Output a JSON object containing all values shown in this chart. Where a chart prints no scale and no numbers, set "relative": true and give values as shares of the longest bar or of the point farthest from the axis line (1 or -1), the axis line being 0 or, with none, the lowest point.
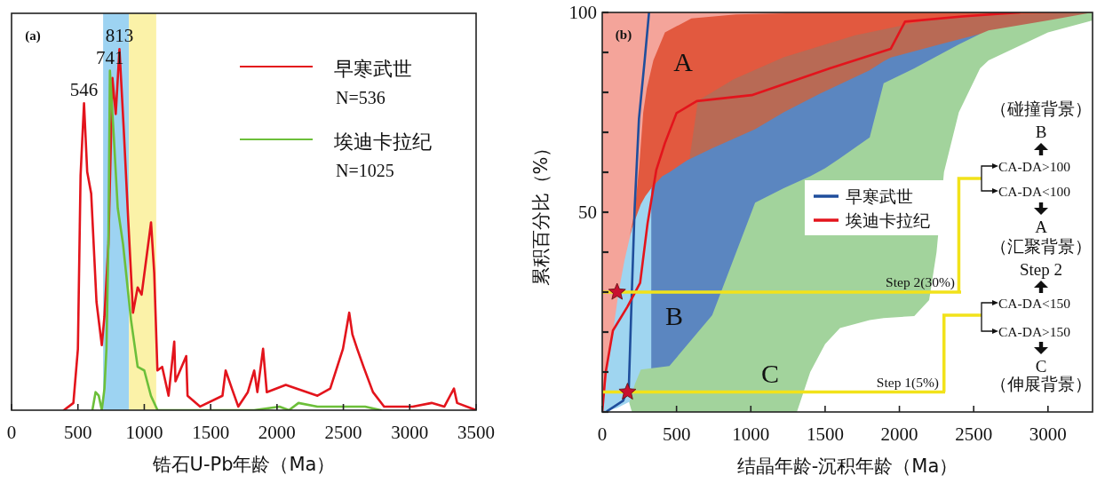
{
  "chart_data": [
    {
      "type": "line",
      "relative": true,
      "xlabel": "锆石U-Pb年龄（Ma）",
      "xlim": [
        0,
        3500
      ],
      "xticks": [
        0,
        500,
        1000,
        1500,
        2000,
        2500,
        3000,
        3500
      ],
      "legend": "top right",
      "tick_labels": "x",
      "bands": [
        {
          "axis": "x",
          "from": 690,
          "to": 885,
          "color": "#9dd3f2"
        },
        {
          "axis": "x",
          "from": 885,
          "to": 1090,
          "color": "#fbf2a8"
        }
      ],
      "series": [
        {
          "name": "早寒武世",
          "color": "#e3141c",
          "x": [
            394,
            466,
            500,
            520,
            546,
            570,
            600,
            640,
            680,
            700,
            730,
            760,
            785,
            813,
            845,
            880,
            915,
            950,
            980,
            1051,
            1075,
            1099,
            1135,
            1183,
            1226,
            1235,
            1316,
            1326,
            1421,
            1589,
            1613,
            1660,
            1708,
            1780,
            1828,
            1852,
            1895,
            1923,
            2066,
            2305,
            2401,
            2497,
            2544,
            2568,
            2604,
            2652,
            2723,
            2807,
            3022,
            3165,
            3261,
            3333,
            3357,
            3500
          ],
          "values": [
            0,
            0.02,
            0.17,
            0.65,
            0.85,
            0.66,
            0.6,
            0.3,
            0.18,
            0.26,
            0.46,
            0.92,
            0.82,
            1.0,
            0.78,
            0.52,
            0.27,
            0.34,
            0.32,
            0.52,
            0.38,
            0.11,
            0.12,
            0.04,
            0.19,
            0.08,
            0.15,
            0.04,
            0.01,
            0.04,
            0.11,
            0.06,
            0.01,
            0.05,
            0.11,
            0.05,
            0.17,
            0.05,
            0.07,
            0.04,
            0.06,
            0.17,
            0.27,
            0.21,
            0.17,
            0.12,
            0.05,
            0.01,
            0.01,
            0.02,
            0.01,
            0.06,
            0.02,
            0
          ]
        },
        {
          "name": "埃迪卡拉纪",
          "color": "#6cbf3a",
          "x": [
            609,
            633,
            657,
            680,
            700,
            715,
            730,
            741,
            770,
            800,
            840,
            900,
            950,
            1000,
            1050,
            1100,
            1828,
            2019,
            2090,
            2162,
            2305,
            2664,
            2783
          ],
          "values": [
            0,
            0.05,
            0.04,
            0,
            0.06,
            0.17,
            0.47,
            0.94,
            0.76,
            0.56,
            0.46,
            0.25,
            0.12,
            0.11,
            0.04,
            0,
            0,
            0.01,
            0,
            0.02,
            0.01,
            0.01,
            0
          ]
        }
      ],
      "annotations": [
        "(a)",
        "N=536",
        "N=1025",
        {
          "text": "546",
          "x": 546,
          "y": 0.85
        },
        {
          "text": "741",
          "x": 741,
          "y": 0.94
        },
        {
          "text": "813",
          "x": 813,
          "y": 1.0
        }
      ]
    },
    {
      "type": "line",
      "xlabel": "结晶年龄-沉积年龄（Ma）",
      "ylabel": "累积百分比（%）",
      "xlim": [
        0,
        3300
      ],
      "xticks": [
        0,
        500,
        1000,
        1500,
        2000,
        2500,
        3000
      ],
      "ylim": [
        0,
        100
      ],
      "yticks": [
        {
          "value": 0,
          "label": null
        },
        {
          "value": 10,
          "label": null
        },
        {
          "value": 20,
          "label": null
        },
        {
          "value": 30,
          "label": null
        },
        {
          "value": 40,
          "label": null
        },
        50,
        {
          "value": 60,
          "label": null
        },
        {
          "value": 70,
          "label": null
        },
        {
          "value": 80,
          "label": null
        },
        {
          "value": 90,
          "label": null
        },
        100
      ],
      "legend": "center",
      "series": [
        {
          "type": "area",
          "color": "#f4a49a",
          "x": [
            0,
            3300
          ],
          "values": [
            100,
            100
          ]
        },
        {
          "type": "area",
          "color": "#e2593f",
          "x": [
            190,
            218,
            250,
            276,
            300,
            344,
            422,
            600,
            900,
            1500,
            3300
          ],
          "values": [
            45,
            50,
            62,
            75,
            81,
            88,
            95,
            98.5,
            99.5,
            100,
            100
          ]
        },
        {
          "type": "area",
          "color": "#b86a55",
          "x": [
            590,
            644,
            885,
            1221,
            1702,
            2183,
            2663,
            3288
          ],
          "values": [
            64,
            77.9,
            83.3,
            88.8,
            94.3,
            98,
            99.4,
            100
          ]
        },
        {
          "type": "area",
          "color": "#9fd5f0",
          "x": [
            0,
            40,
            80,
            110,
            150,
            200,
            260,
            290,
            330,
            356
          ],
          "values": [
            0,
            12,
            22,
            30,
            38,
            46,
            52,
            54,
            56,
            57
          ]
        },
        {
          "type": "area",
          "color": "#5b86c0",
          "x": [
            330,
            404,
            452,
            572,
            740,
            1029,
            1221,
            1462,
            1798,
            1894,
            1942,
            2300,
            2543
          ],
          "values": [
            56,
            59,
            60,
            63,
            66,
            70.8,
            75,
            79.6,
            85.5,
            87.8,
            88.7,
            92.3,
            94.6
          ]
        },
        {
          "type": "area",
          "color": "#a2d39c",
          "x": [
            180,
            220,
            260,
            452,
            740,
            1029,
            1221,
            1310,
            1400,
            1500,
            1600,
            1800,
            1894,
            2100,
            2200,
            2250,
            2300,
            2400,
            2543,
            2600,
            3000,
            3300
          ],
          "values": [
            2,
            7,
            10.6,
            11.5,
            24.2,
            52.4,
            56,
            57.5,
            59,
            61,
            63.5,
            68.7,
            82.3,
            86,
            88,
            89,
            90,
            92,
            94.6,
            95.5,
            98,
            100
          ]
        },
        {
          "type": "area",
          "color": "#ffffff",
          "x": [
            0,
            100,
            180,
            200,
            220,
            1310,
            1400,
            1500,
            1600,
            1800,
            1894,
            2100,
            2200,
            2250,
            2300,
            2400,
            2543,
            2600,
            3000,
            3300
          ],
          "values": [
            0,
            1,
            2.5,
            0,
            0,
            0,
            10,
            17,
            21,
            23,
            23.5,
            24,
            28,
            40,
            60,
            75,
            86,
            88,
            95,
            98
          ]
        },
        {
          "name": "早寒武世",
          "color": "#1f4e9c",
          "x": [
            33,
            140,
            179,
            198,
            218,
            247,
            286,
            315
          ],
          "values": [
            0.2,
            2.8,
            6.2,
            28.6,
            50.9,
            73.3,
            88.2,
            100
          ]
        },
        {
          "name": "埃迪卡拉纪",
          "color": "#e3141c",
          "x": [
            0,
            23,
            72,
            169,
            255,
            305,
            364,
            422,
            500,
            636,
            1006,
            1531,
            1942,
            2038,
            2423,
            2808
          ],
          "values": [
            0,
            9.9,
            20.4,
            26.3,
            32.3,
            47.2,
            60.6,
            67.3,
            74.8,
            77.8,
            79.3,
            86,
            90.9,
            97.7,
            99,
            100
          ]
        },
        {
          "type": "scatter",
          "color": "#c8102e",
          "marker": "star",
          "x": [
            100,
            170
          ],
          "values": [
            30,
            5
          ]
        }
      ],
      "ref_lines": [
        {
          "axis": "y",
          "value": 30,
          "label": "Step 2(30%)",
          "color": "#f2e21a"
        },
        {
          "axis": "y",
          "value": 5,
          "label": "Step 1(5%)",
          "color": "#f2e21a"
        }
      ],
      "annotations": [
        "(b)",
        "A",
        "B",
        "C",
        "（碰撞背景）",
        "B",
        {
          "text": "CA-DA>100",
          "x": 2400,
          "y": 30
        },
        "CA-DA<100",
        "A",
        "（汇聚背景）",
        "Step 2",
        {
          "text": "CA-DA<150",
          "x": 2300,
          "y": 5
        },
        "CA-DA>150",
        "C",
        "（伸展背景）"
      ]
    }
  ]
}
